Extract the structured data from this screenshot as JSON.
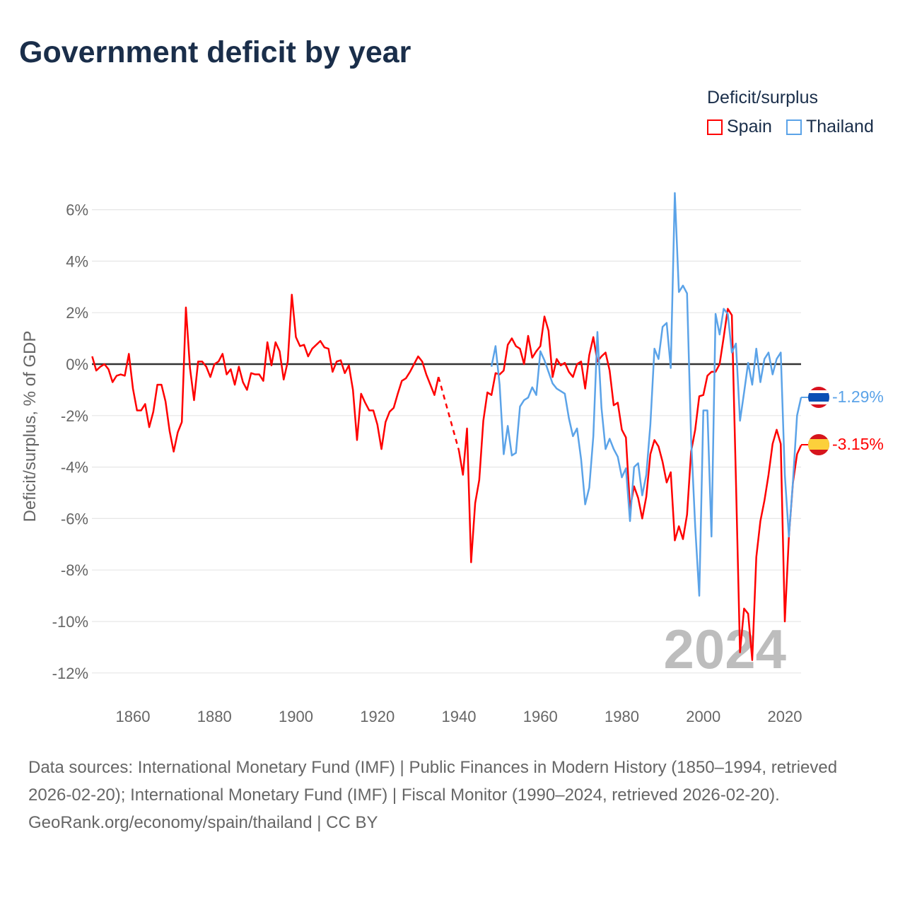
{
  "title": "Government deficit by year",
  "legend": {
    "title": "Deficit/surplus",
    "items": [
      {
        "label": "Spain",
        "color": "#ff0000"
      },
      {
        "label": "Thailand",
        "color": "#5ba3e8"
      }
    ]
  },
  "watermark_year": "2024",
  "end_labels": {
    "thailand": "-1.29%",
    "spain": "-3.15%"
  },
  "footer": {
    "sources": "Data sources: International Monetary Fund (IMF) | Public Finances in Modern History (1850–1994, retrieved 2026-02-20); International Monetary Fund (IMF) | Fiscal Monitor (1990–2024, retrieved 2026-02-20).",
    "credit": "GeoRank.org/economy/spain/thailand | CC BY"
  },
  "chart_data": {
    "type": "line",
    "title": "Government deficit by year",
    "ylabel": "Deficit/surplus, % of GDP",
    "xlabel": "",
    "xlim": [
      1850,
      2024
    ],
    "ylim": [
      -13,
      7
    ],
    "yticks": [
      6,
      4,
      2,
      0,
      -2,
      -4,
      -6,
      -8,
      -10,
      -12
    ],
    "ytick_labels": [
      "6%",
      "4%",
      "2%",
      "0%",
      "-2%",
      "-4%",
      "-6%",
      "-8%",
      "-10%",
      "-12%"
    ],
    "xticks": [
      1860,
      1880,
      1900,
      1920,
      1940,
      1960,
      1980,
      2000,
      2020
    ],
    "xtick_labels": [
      "1860",
      "1880",
      "1900",
      "1920",
      "1940",
      "1960",
      "1980",
      "2000",
      "2020"
    ],
    "grid": true,
    "legend_position": "top-right",
    "series": [
      {
        "name": "Spain",
        "color": "#ff0000",
        "start_year": 1850,
        "dashed_gap": [
          1935,
          1940
        ],
        "values": [
          0.3,
          -0.25,
          -0.1,
          0,
          -0.2,
          -0.7,
          -0.45,
          -0.4,
          -0.45,
          0.4,
          -0.95,
          -1.8,
          -1.8,
          -1.55,
          -2.45,
          -1.85,
          -0.8,
          -0.8,
          -1.45,
          -2.6,
          -3.4,
          -2.65,
          -2.25,
          2.2,
          -0.15,
          -1.4,
          0.1,
          0.1,
          -0.1,
          -0.5,
          0,
          0.1,
          0.4,
          -0.4,
          -0.2,
          -0.8,
          -0.1,
          -0.7,
          -1.0,
          -0.35,
          -0.4,
          -0.4,
          -0.65,
          0.85,
          -0.05,
          0.85,
          0.5,
          -0.6,
          0.1,
          2.7,
          1.05,
          0.7,
          0.75,
          0.3,
          0.6,
          0.75,
          0.9,
          0.65,
          0.6,
          -0.3,
          0.1,
          0.15,
          -0.35,
          -0.05,
          -1.0,
          -2.95,
          -1.15,
          -1.5,
          -1.8,
          -1.8,
          -2.35,
          -3.3,
          -2.25,
          -1.85,
          -1.7,
          -1.15,
          -0.65,
          -0.55,
          -0.3,
          0,
          0.3,
          0.1,
          -0.4,
          -0.8,
          -1.2,
          -0.5,
          null,
          null,
          null,
          null,
          -3.35,
          -4.3,
          -2.5,
          -7.7,
          -5.4,
          -4.5,
          -2.2,
          -1.1,
          -1.2,
          -0.35,
          -0.4,
          -0.25,
          0.75,
          1.0,
          0.7,
          0.6,
          0,
          1.1,
          0.25,
          0.5,
          0.7,
          1.85,
          1.3,
          -0.5,
          0.2,
          -0.05,
          0.05,
          -0.3,
          -0.5,
          0,
          0.1,
          -0.95,
          0.35,
          1.05,
          0.1,
          0.3,
          0.45,
          -0.25,
          -1.6,
          -1.5,
          -2.55,
          -2.85,
          -5.6,
          -4.75,
          -5.2,
          -6.0,
          -5.15,
          -3.5,
          -2.95,
          -3.2,
          -3.8,
          -4.6,
          -4.2,
          -6.85,
          -6.3,
          -6.8,
          -5.85,
          -3.4,
          -2.55,
          -1.25,
          -1.2,
          -0.45,
          -0.3,
          -0.3,
          0,
          1.05,
          2.15,
          1.9,
          -4.5,
          -11.2,
          -9.5,
          -9.7,
          -11.5,
          -7.5,
          -6.1,
          -5.3,
          -4.3,
          -3.1,
          -2.55,
          -3.1,
          -10.0,
          -6.7,
          -4.6,
          -3.5,
          -3.15
        ]
      },
      {
        "name": "Thailand",
        "color": "#5ba3e8",
        "start_year": 1948,
        "values": [
          -0.1,
          0.7,
          -0.8,
          -3.5,
          -2.4,
          -3.55,
          -3.45,
          -1.65,
          -1.4,
          -1.3,
          -0.9,
          -1.2,
          0.5,
          0.15,
          -0.3,
          -0.75,
          -0.95,
          -1.05,
          -1.15,
          -2.1,
          -2.8,
          -2.5,
          -3.7,
          -5.45,
          -4.8,
          -2.8,
          1.25,
          -1.7,
          -3.3,
          -2.9,
          -3.3,
          -3.6,
          -4.4,
          -4.05,
          -6.1,
          -4.0,
          -3.85,
          -5.1,
          -4.3,
          -2.35,
          0.6,
          0.2,
          1.45,
          1.6,
          -0.15,
          6.65,
          2.8,
          3.05,
          2.75,
          -2.9,
          -6.3,
          -9.0,
          -1.8,
          -1.8,
          -6.7,
          1.95,
          1.15,
          2.15,
          1.95,
          0.45,
          0.8,
          -2.2,
          -1.1,
          0.05,
          -0.8,
          0.6,
          -0.7,
          0.2,
          0.45,
          -0.4,
          0.2,
          0.45,
          -4.3,
          -6.7,
          -4.55,
          -2.0,
          -1.29
        ]
      }
    ]
  }
}
